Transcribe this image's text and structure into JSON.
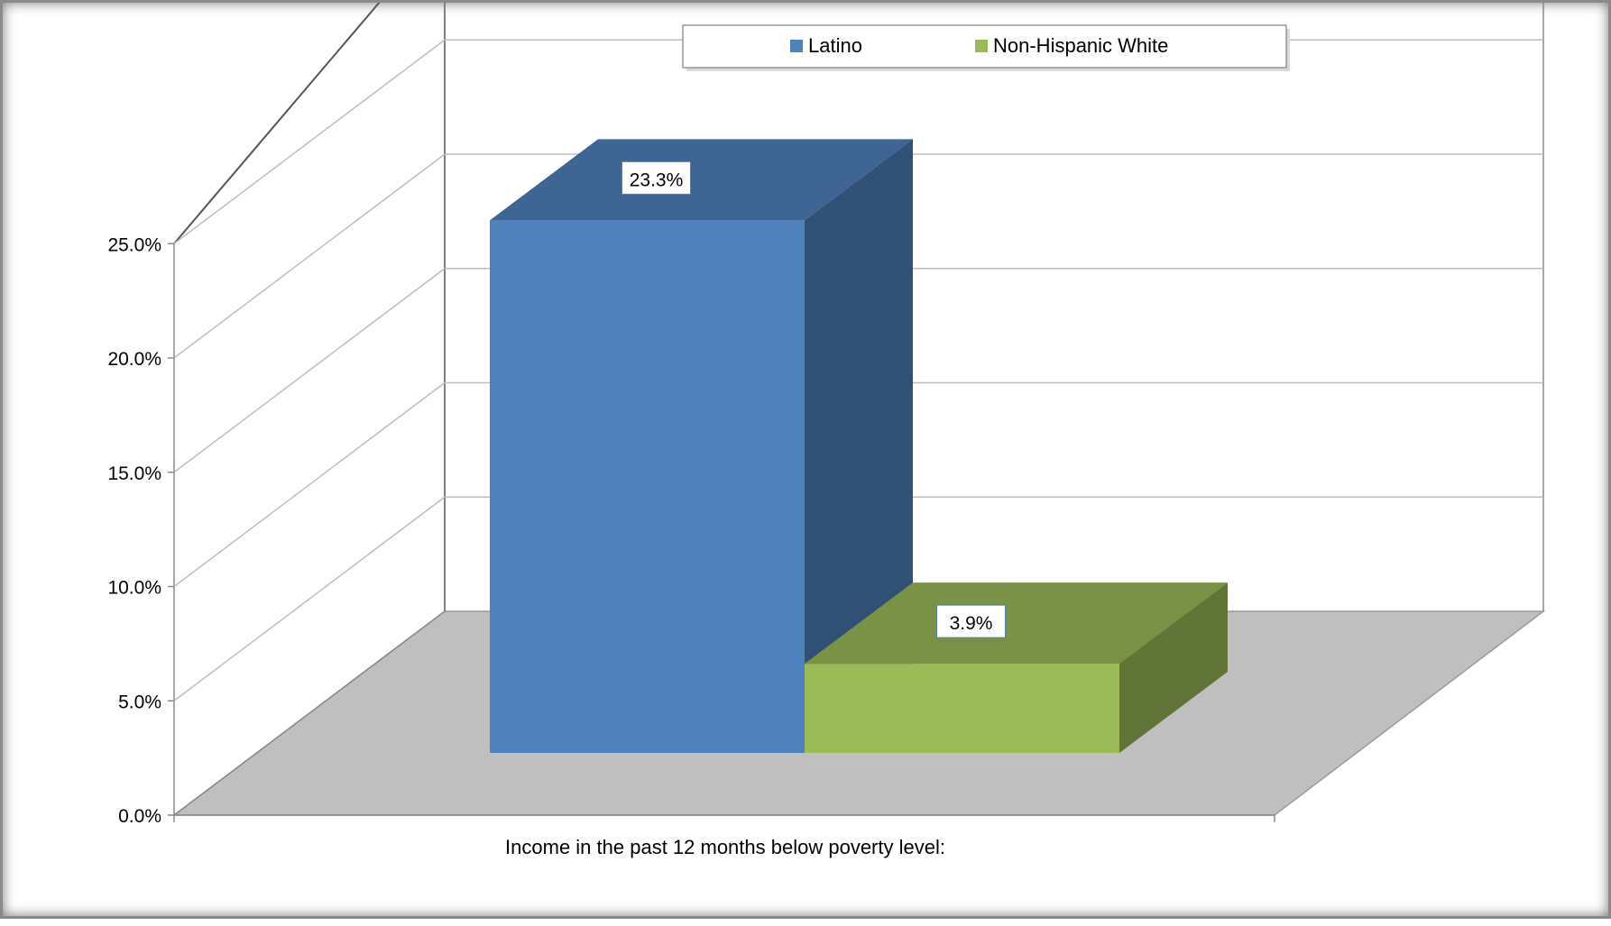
{
  "chart_data": {
    "type": "bar",
    "categories": [
      "Income in the past 12 months below poverty level:"
    ],
    "series": [
      {
        "name": "Latino",
        "values": [
          23.3
        ],
        "color": "#4f81bd",
        "label": "23.3%"
      },
      {
        "name": "Non-Hispanic White",
        "values": [
          3.9
        ],
        "color": "#9bbb59",
        "label": "3.9%"
      }
    ],
    "xlabel": "Income in the past 12 months below poverty level:",
    "ylabel": "",
    "ylim": [
      0,
      25
    ],
    "y_tick_values": [
      0,
      5,
      10,
      15,
      20,
      25
    ],
    "y_tick_labels": [
      "0.0%",
      "5.0%",
      "10.0%",
      "15.0%",
      "20.0%",
      "25.0%"
    ],
    "grid": true,
    "legend": {
      "placement": "top-center",
      "entries": [
        "Latino",
        "Non-Hispanic White"
      ]
    },
    "style": "3d-column"
  }
}
